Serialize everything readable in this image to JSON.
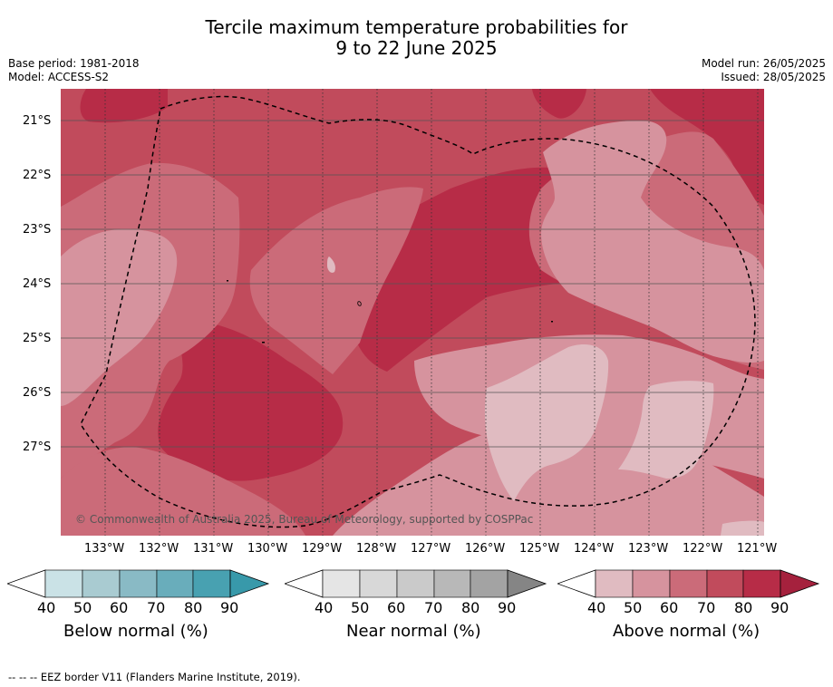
{
  "title": {
    "line1": "Tercile maximum temperature probabilities for",
    "line2": "9 to 22 June 2025"
  },
  "meta": {
    "base_period": "Base period: 1981-2018",
    "model": "Model: ACCESS-S2",
    "model_run": "Model run: 26/05/2025",
    "issued": "Issued: 28/05/2025"
  },
  "map": {
    "copyright": "© Commonwealth of Australia 2025, Bureau of Meteorology, supported by COSPPac",
    "lat_labels": [
      "21°S",
      "22°S",
      "23°S",
      "24°S",
      "25°S",
      "26°S",
      "27°S"
    ],
    "lon_labels": [
      "133°W",
      "132°W",
      "131°W",
      "130°W",
      "129°W",
      "128°W",
      "127°W",
      "126°W",
      "125°W",
      "124°W",
      "123°W",
      "122°W",
      "121°W"
    ],
    "background_color": "#c14b5c",
    "zone_colors": {
      "p40": "#e0bbc1",
      "p50": "#d6939e",
      "p60": "#cb6b79",
      "p70": "#c14b5c",
      "p80": "#b72c47"
    }
  },
  "colorbars": [
    {
      "label": "Below normal (%)",
      "ticks": [
        "40",
        "50",
        "60",
        "70",
        "80",
        "90"
      ],
      "colors": [
        "#cae2e6",
        "#a9cbd1",
        "#89bac5",
        "#69adbb",
        "#48a1b1",
        "#3899aa"
      ]
    },
    {
      "label": "Near normal (%)",
      "ticks": [
        "40",
        "50",
        "60",
        "70",
        "80",
        "90"
      ],
      "colors": [
        "#e5e5e5",
        "#d8d8d8",
        "#cacaca",
        "#b8b8b8",
        "#a3a3a3",
        "#858585"
      ]
    },
    {
      "label": "Above normal (%)",
      "ticks": [
        "40",
        "50",
        "60",
        "70",
        "80",
        "90"
      ],
      "colors": [
        "#e0bbc1",
        "#d6939e",
        "#cb6b79",
        "#c14b5c",
        "#b72c47",
        "#a5213d"
      ]
    }
  ],
  "footer": "-- -- -- EEZ border V11 (Flanders Marine Institute, 2019)."
}
